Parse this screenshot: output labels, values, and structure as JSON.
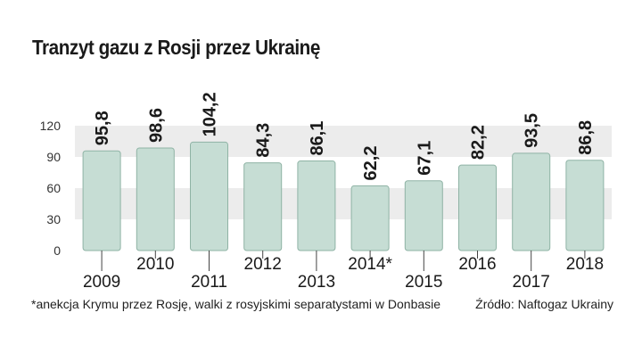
{
  "chart_data": {
    "type": "bar",
    "title": "Tranzyt gazu z Rosji przez Ukrainę",
    "categories": [
      "2009",
      "2010",
      "2011",
      "2012",
      "2013",
      "2014*",
      "2015",
      "2016",
      "2017",
      "2018"
    ],
    "values": [
      95.8,
      98.6,
      104.2,
      84.3,
      86.1,
      62.2,
      67.1,
      82.2,
      93.5,
      86.8
    ],
    "value_labels": [
      "95,8",
      "98,6",
      "104,2",
      "84,3",
      "86,1",
      "62,2",
      "67,1",
      "82,2",
      "93,5",
      "86,8"
    ],
    "yticks": [
      "0",
      "30",
      "60",
      "90",
      "120"
    ],
    "ylim": [
      0,
      120
    ],
    "grid": false,
    "note": "*anekcja Krymu przez Rosję, walki z rosyjskimi separatystami w Donbasie",
    "source": "Źródło: Naftogaz Ukrainy",
    "colors": {
      "bar": "#c6ddd4",
      "bar_edge": "#8fb3a5",
      "band": "#ececec",
      "text": "#1a1a1a"
    }
  }
}
